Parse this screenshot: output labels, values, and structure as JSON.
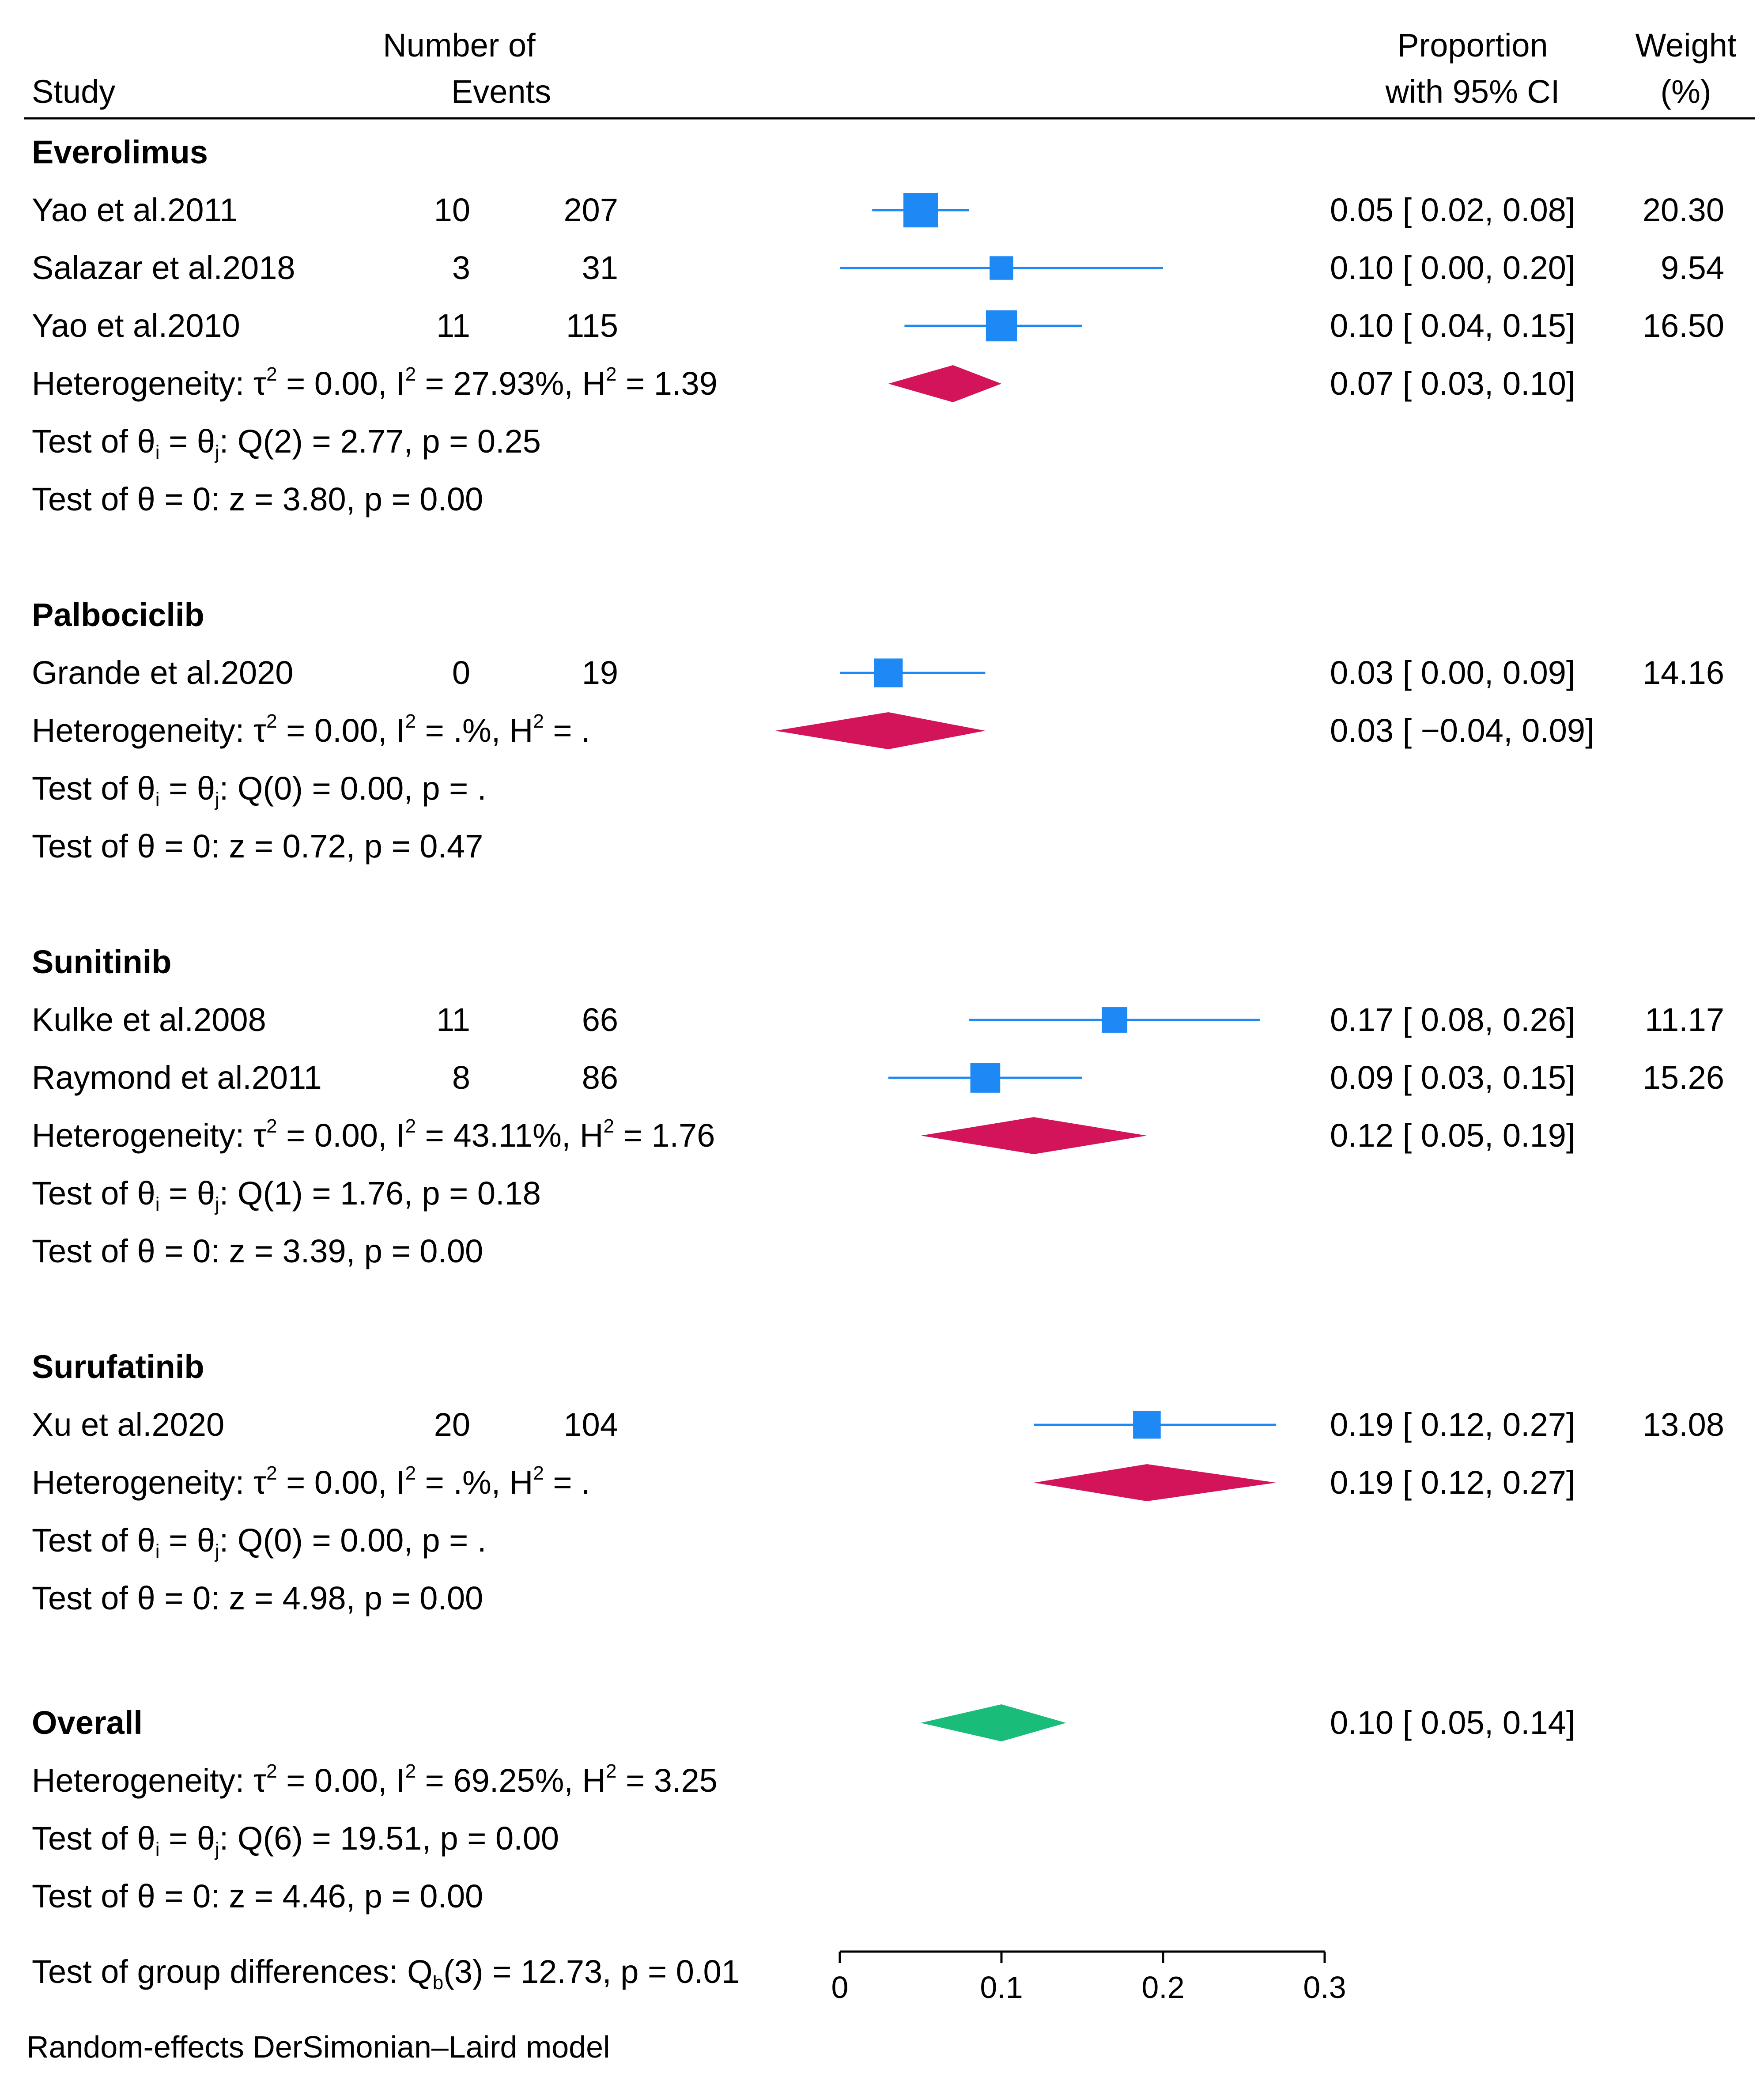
{
  "chart_data": {
    "type": "forest",
    "headers": {
      "study": "Study",
      "events_line1": "Number of",
      "events_line2": "Events",
      "prop_line1": "Proportion",
      "prop_line2": "with 95% CI",
      "weight_line1": "Weight",
      "weight_line2": "(%)"
    },
    "groups": [
      {
        "name": "Everolimus",
        "studies": [
          {
            "label": "Yao et al.2011",
            "events": "10",
            "total": "207",
            "est": 0.05,
            "lo": 0.02,
            "hi": 0.08,
            "ci": "0.05 [  0.02,  0.08]",
            "weight_val": 20.3,
            "weight": "20.30"
          },
          {
            "label": "Salazar et al.2018",
            "events": "3",
            "total": "31",
            "est": 0.1,
            "lo": 0.0,
            "hi": 0.2,
            "ci": "0.10 [  0.00,  0.20]",
            "weight_val": 9.54,
            "weight": "9.54"
          },
          {
            "label": "Yao et al.2010",
            "events": "11",
            "total": "115",
            "est": 0.1,
            "lo": 0.04,
            "hi": 0.15,
            "ci": "0.10 [  0.04,  0.15]",
            "weight_val": 16.5,
            "weight": "16.50"
          }
        ],
        "pooled": {
          "est": 0.07,
          "lo": 0.03,
          "hi": 0.1,
          "ci": "0.07 [  0.03,  0.10]"
        },
        "het": {
          "tau2": "= 0.00, I",
          "i2": "= 27.93%, H",
          "h2": "= 1.39"
        },
        "q": {
          "rest": ": Q(2) = 2.77, p = 0.25"
        },
        "z": "Test of θ = 0: z = 3.80, p = 0.00"
      },
      {
        "name": "Palbociclib",
        "studies": [
          {
            "label": "Grande et al.2020",
            "events": "0",
            "total": "19",
            "est": 0.03,
            "lo": 0.0,
            "hi": 0.09,
            "ci": "0.03 [  0.00,  0.09]",
            "weight_val": 14.16,
            "weight": "14.16"
          }
        ],
        "pooled": {
          "est": 0.03,
          "lo": -0.04,
          "hi": 0.09,
          "ci": "0.03 [ −0.04,  0.09]"
        },
        "het": {
          "tau2": "= 0.00, I",
          "i2": "= .%, H",
          "h2": "= ."
        },
        "q": {
          "rest": ": Q(0) = 0.00, p = ."
        },
        "z": "Test of θ = 0: z = 0.72, p = 0.47"
      },
      {
        "name": "Sunitinib",
        "studies": [
          {
            "label": "Kulke et al.2008",
            "events": "11",
            "total": "66",
            "est": 0.17,
            "lo": 0.08,
            "hi": 0.26,
            "ci": "0.17 [  0.08,  0.26]",
            "weight_val": 11.17,
            "weight": "11.17"
          },
          {
            "label": "Raymond et al.2011",
            "events": "8",
            "total": "86",
            "est": 0.09,
            "lo": 0.03,
            "hi": 0.15,
            "ci": "0.09 [  0.03,  0.15]",
            "weight_val": 15.26,
            "weight": "15.26"
          }
        ],
        "pooled": {
          "est": 0.12,
          "lo": 0.05,
          "hi": 0.19,
          "ci": "0.12 [  0.05,  0.19]"
        },
        "het": {
          "tau2": "= 0.00, I",
          "i2": "= 43.11%, H",
          "h2": "= 1.76"
        },
        "q": {
          "rest": ": Q(1) = 1.76, p = 0.18"
        },
        "z": "Test of θ = 0: z = 3.39, p = 0.00"
      },
      {
        "name": "Surufatinib",
        "studies": [
          {
            "label": "Xu et al.2020",
            "events": "20",
            "total": "104",
            "est": 0.19,
            "lo": 0.12,
            "hi": 0.27,
            "ci": "0.19 [  0.12,  0.27]",
            "weight_val": 13.08,
            "weight": "13.08"
          }
        ],
        "pooled": {
          "est": 0.19,
          "lo": 0.12,
          "hi": 0.27,
          "ci": "0.19 [  0.12,  0.27]"
        },
        "het": {
          "tau2": "= 0.00, I",
          "i2": "= .%, H",
          "h2": "= ."
        },
        "q": {
          "rest": ": Q(0) = 0.00, p = ."
        },
        "z": "Test of θ = 0: z = 4.98, p = 0.00"
      }
    ],
    "overall": {
      "name": "Overall",
      "est": 0.1,
      "lo": 0.05,
      "hi": 0.14,
      "ci": "0.10 [  0.05,  0.14]",
      "het": {
        "tau2": "= 0.00, I",
        "i2": "= 69.25%, H",
        "h2": "= 3.25"
      },
      "q": {
        "rest": ": Q(6) = 19.51, p = 0.00"
      },
      "z": "Test of θ = 0: z = 4.46, p = 0.00"
    },
    "group_test": {
      "prefix": "Test of group differences: Q",
      "sub": "b",
      "rest": "(3) = 12.73, p = 0.01"
    },
    "het_prefix": "Heterogeneity: τ",
    "q_prefix": "Test of θ",
    "q_mid": " = θ",
    "q_sub_i": "i",
    "q_sub_j": "j",
    "sup2": "2",
    "x_axis": {
      "min": 0,
      "max": 0.3,
      "ticks": [
        0,
        0.1,
        0.2,
        0.3
      ],
      "tick_labels": [
        "0",
        "0.1",
        "0.2",
        "0.3"
      ]
    },
    "footnote": "Random-effects DerSimonian–Laird model",
    "colors": {
      "study": "#1E88F5",
      "subgroup": "#D4145A",
      "overall": "#1ABC7A"
    }
  }
}
